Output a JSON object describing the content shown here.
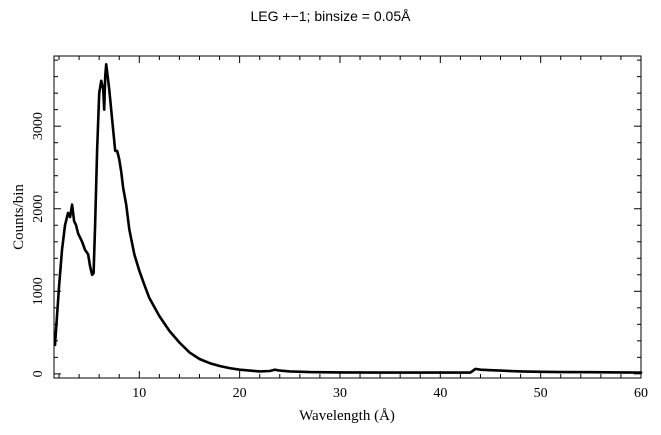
{
  "chart_data": {
    "type": "line",
    "title": "LEG +−1; binsize = 0.05Å",
    "xlabel": "Wavelength (Å)",
    "ylabel": "Counts/bin",
    "xlim": [
      1.5,
      60
    ],
    "ylim": [
      -50,
      3850
    ],
    "xticks": [
      10,
      20,
      30,
      40,
      50,
      60
    ],
    "yticks": [
      0,
      1000,
      2000,
      3000
    ],
    "grid": false,
    "legend": "none",
    "series": [
      {
        "color": "#000000",
        "x": [
          1.6,
          1.8,
          2.0,
          2.3,
          2.6,
          2.9,
          3.1,
          3.3,
          3.5,
          3.7,
          3.9,
          4.1,
          4.3,
          4.6,
          4.9,
          5.1,
          5.3,
          5.45,
          5.6,
          5.8,
          6.0,
          6.2,
          6.4,
          6.5,
          6.6,
          6.7,
          6.8,
          6.9,
          7.0,
          7.2,
          7.4,
          7.6,
          7.8,
          8.0,
          8.2,
          8.4,
          8.7,
          9.0,
          9.5,
          10.0,
          10.5,
          11.0,
          12.0,
          13.0,
          14.0,
          15.0,
          16.0,
          17.0,
          18.0,
          19.0,
          20.0,
          21.0,
          22.0,
          23.0,
          23.5,
          24.0,
          25.0,
          27.0,
          30.0,
          35.0,
          40.0,
          43.0,
          43.5,
          44.0,
          45.0,
          46.0,
          48.0,
          50.0,
          52.0,
          55.0,
          58.0,
          60.0
        ],
        "y": [
          350,
          700,
          1050,
          1500,
          1800,
          1950,
          1900,
          2050,
          1850,
          1800,
          1700,
          1650,
          1600,
          1500,
          1450,
          1300,
          1200,
          1220,
          1800,
          2700,
          3400,
          3550,
          3450,
          3200,
          3600,
          3750,
          3650,
          3550,
          3450,
          3200,
          2950,
          2700,
          2700,
          2600,
          2450,
          2250,
          2050,
          1750,
          1450,
          1250,
          1080,
          920,
          700,
          520,
          380,
          260,
          180,
          130,
          95,
          70,
          50,
          40,
          30,
          35,
          50,
          40,
          30,
          22,
          18,
          16,
          15,
          15,
          60,
          50,
          45,
          40,
          30,
          25,
          22,
          20,
          18,
          16
        ]
      }
    ]
  }
}
